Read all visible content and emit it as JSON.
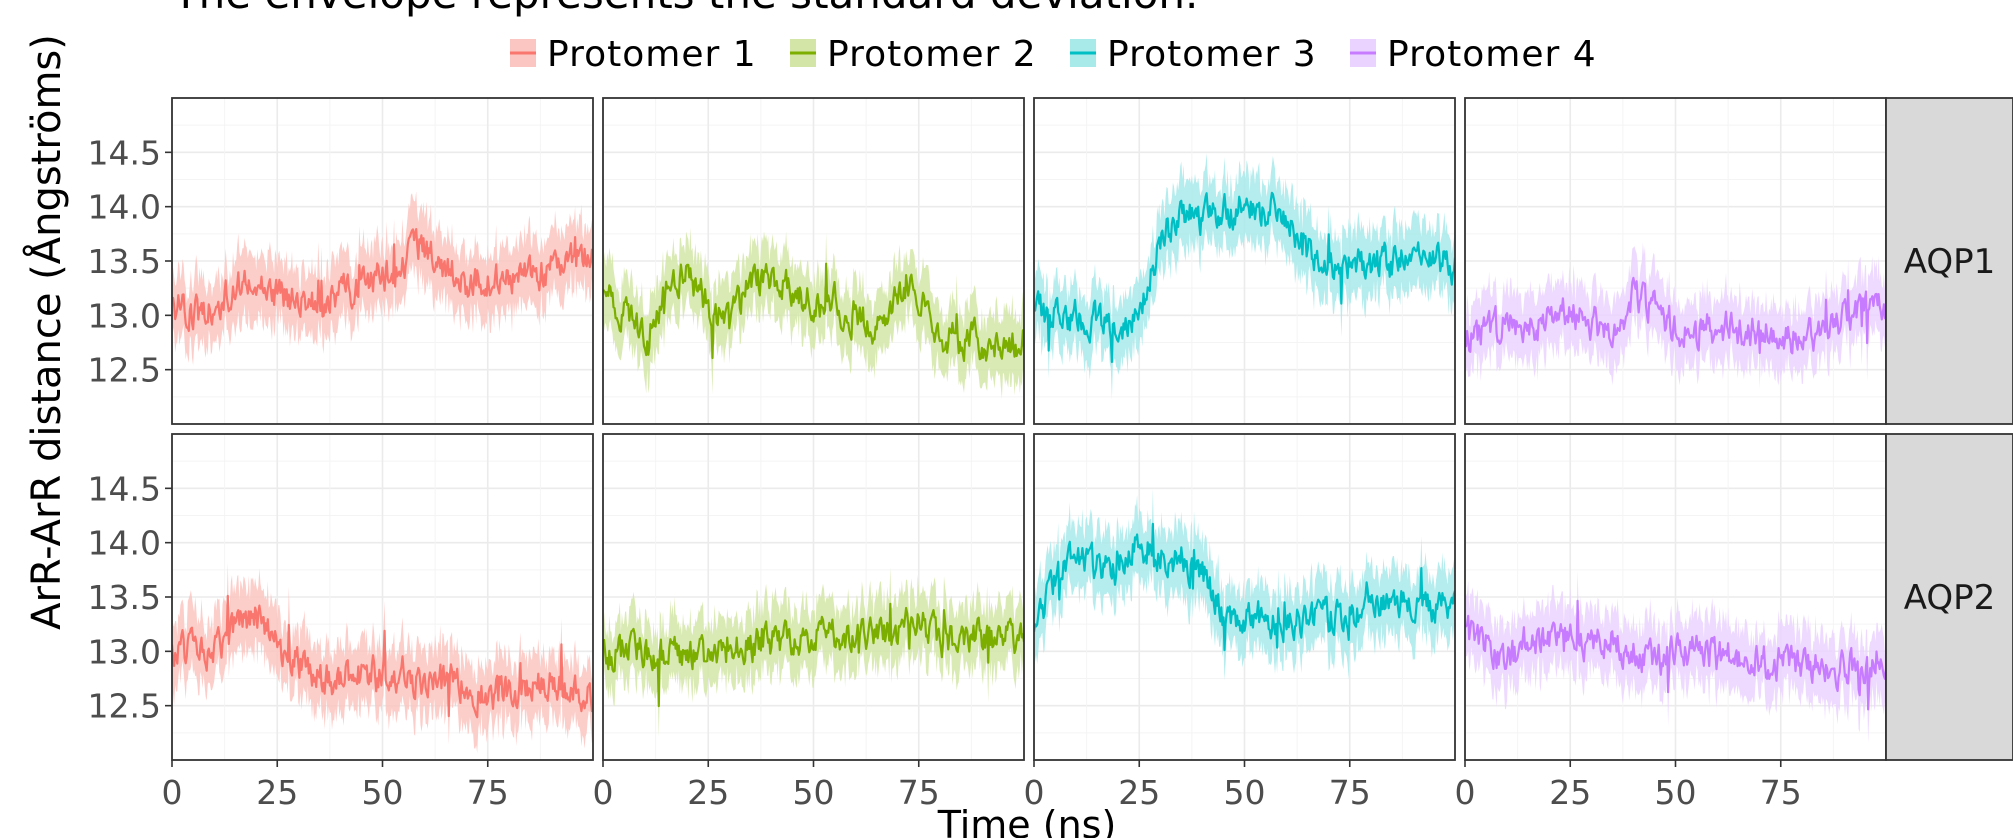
{
  "subtitle": "The envelope represents the standard deviation.",
  "xlabel": "Time (ns)",
  "ylabel": "ArR-ArR distance (Ångströms)",
  "legend": {
    "placement": "top",
    "items": [
      {
        "label": "Protomer 1",
        "color": "#F8766D",
        "fill": "#FBC6C1"
      },
      {
        "label": "Protomer 2",
        "color": "#7CAE00",
        "fill": "#D3E6A8"
      },
      {
        "label": "Protomer 3",
        "color": "#00BFC4",
        "fill": "#A8E9EA"
      },
      {
        "label": "Protomer 4",
        "color": "#C77CFF",
        "fill": "#EBD3FF"
      }
    ]
  },
  "chart_data": {
    "type": "line",
    "facets": {
      "rows": [
        "AQP1",
        "AQP2"
      ],
      "cols": [
        "Protomer 1",
        "Protomer 2",
        "Protomer 3",
        "Protomer 4"
      ]
    },
    "xlabel": "Time (ns)",
    "ylabel": "ArR-ArR distance (Ångströms)",
    "xlim": [
      0,
      100
    ],
    "ylim": [
      12.0,
      15.0
    ],
    "x_ticks": [
      0,
      25,
      50,
      75
    ],
    "y_ticks": [
      12.5,
      13.0,
      13.5,
      14.0,
      14.5
    ],
    "envelope": "standard deviation",
    "grid": true,
    "x": [
      0,
      5,
      10,
      15,
      20,
      25,
      30,
      35,
      40,
      45,
      50,
      55,
      60,
      65,
      70,
      75,
      80,
      85,
      90,
      95,
      100
    ],
    "panels": [
      {
        "row": "AQP1",
        "series": "Protomer 1",
        "mean": [
          13.1,
          13.0,
          13.05,
          13.25,
          13.3,
          13.2,
          13.1,
          13.1,
          13.2,
          13.25,
          13.35,
          13.5,
          13.6,
          13.45,
          13.3,
          13.3,
          13.35,
          13.35,
          13.4,
          13.5,
          13.6
        ],
        "sd": 0.3
      },
      {
        "row": "AQP1",
        "series": "Protomer 2",
        "mean": [
          13.2,
          13.0,
          12.8,
          13.2,
          13.4,
          13.1,
          12.9,
          13.3,
          13.35,
          13.2,
          13.15,
          13.1,
          13.0,
          12.9,
          13.15,
          13.2,
          12.8,
          12.75,
          12.75,
          12.7,
          12.75
        ],
        "sd": 0.3
      },
      {
        "row": "AQP1",
        "series": "Protomer 3",
        "mean": [
          13.05,
          13.0,
          13.0,
          12.95,
          12.9,
          13.0,
          13.7,
          13.9,
          13.9,
          13.95,
          14.0,
          13.95,
          13.9,
          13.55,
          13.5,
          13.5,
          13.45,
          13.5,
          13.55,
          13.5,
          13.45
        ],
        "sd": 0.3
      },
      {
        "row": "AQP1",
        "series": "Protomer 4",
        "mean": [
          12.75,
          12.85,
          12.95,
          12.9,
          12.95,
          13.05,
          12.95,
          12.8,
          13.2,
          13.05,
          12.9,
          12.85,
          12.9,
          12.85,
          12.85,
          12.8,
          12.8,
          12.85,
          13.0,
          13.05,
          13.05
        ],
        "sd": 0.3
      },
      {
        "row": "AQP2",
        "series": "Protomer 1",
        "mean": [
          13.0,
          13.0,
          13.05,
          13.2,
          13.35,
          13.0,
          12.9,
          12.75,
          12.75,
          12.8,
          12.8,
          12.8,
          12.7,
          12.75,
          12.7,
          12.6,
          12.6,
          12.65,
          12.7,
          12.6,
          12.6
        ],
        "sd": 0.3
      },
      {
        "row": "AQP2",
        "series": "Protomer 2",
        "mean": [
          12.95,
          13.0,
          13.0,
          12.95,
          12.95,
          12.95,
          13.0,
          13.05,
          13.1,
          13.05,
          13.15,
          13.15,
          13.15,
          13.15,
          13.2,
          13.3,
          13.1,
          13.15,
          13.1,
          13.15,
          13.15
        ],
        "sd": 0.3
      },
      {
        "row": "AQP2",
        "series": "Protomer 3",
        "mean": [
          13.1,
          13.7,
          13.8,
          13.75,
          13.8,
          14.0,
          13.9,
          13.85,
          13.75,
          13.3,
          13.3,
          13.3,
          13.25,
          13.3,
          13.3,
          13.35,
          13.4,
          13.45,
          13.45,
          13.4,
          13.45
        ],
        "sd": 0.3
      },
      {
        "row": "AQP2",
        "series": "Protomer 4",
        "mean": [
          13.15,
          13.1,
          12.9,
          13.1,
          13.15,
          13.15,
          13.05,
          13.1,
          13.0,
          12.95,
          13.0,
          13.05,
          12.95,
          12.95,
          12.9,
          12.9,
          12.9,
          12.85,
          12.85,
          12.8,
          12.9
        ],
        "sd": 0.3
      }
    ]
  }
}
